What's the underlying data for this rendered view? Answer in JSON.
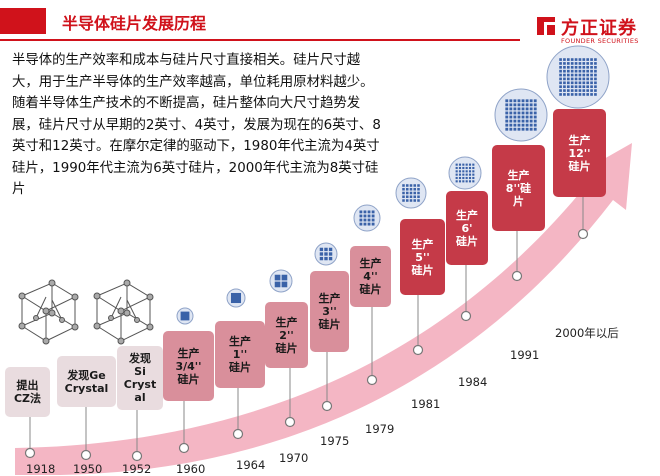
{
  "header": {
    "title": "半导体硅片发展历程"
  },
  "logo": {
    "name": "方正证券",
    "sub": "FOUNDER SECURITIES"
  },
  "intro": {
    "paragraph1": "半导体的生产效率和成本与硅片尺寸直接相关。硅片尺寸越大，用于生产半导体的生产效率越高，单位耗用原材料越少。",
    "paragraph2": "随着半导体生产技术的不断提高，硅片整体向大尺寸趋势发展，硅片尺寸从早期的2英寸、4英寸，发展为现在的6英寸、8英寸和12英寸。在摩尔定律的驱动下，1980年代主流为4英寸硅片，1990年代主流为6英寸硅片，2000年代主流为8英寸硅片"
  },
  "colors": {
    "brand_red": "#d0121b",
    "arrow_pink": "#f4b6c4",
    "box_light": "#e9dcdf",
    "box_pink": "#d98f9b",
    "box_red": "#c53a48",
    "wafer_blue": "#3a62a8"
  },
  "milestones": [
    {
      "year": "1918",
      "label": "提出\nCZ法",
      "style": "light"
    },
    {
      "year": "1950",
      "label": "发现Ge\nCrystal",
      "style": "light"
    },
    {
      "year": "1952",
      "label": "发现\nSi\nCryst\nal",
      "style": "light"
    },
    {
      "year": "1960",
      "label": "生产\n3/4''\n硅片",
      "style": "pink"
    },
    {
      "year": "1964",
      "label": "生产\n1''\n硅片",
      "style": "pink"
    },
    {
      "year": "1970",
      "label": "生产\n2''\n硅片",
      "style": "pink"
    },
    {
      "year": "1975",
      "label": "生产\n3''\n硅片",
      "style": "pink"
    },
    {
      "year": "1979",
      "label": "生产\n4''\n硅片",
      "style": "pink"
    },
    {
      "year": "1981",
      "label": "生产\n5''\n硅片",
      "style": "red"
    },
    {
      "year": "1984",
      "label": "生产\n6'\n硅片",
      "style": "red"
    },
    {
      "year": "1991",
      "label": "生产\n8''硅\n片",
      "style": "red"
    },
    {
      "year": "2000年以后",
      "label": "生产\n12''\n硅片",
      "style": "red"
    }
  ]
}
